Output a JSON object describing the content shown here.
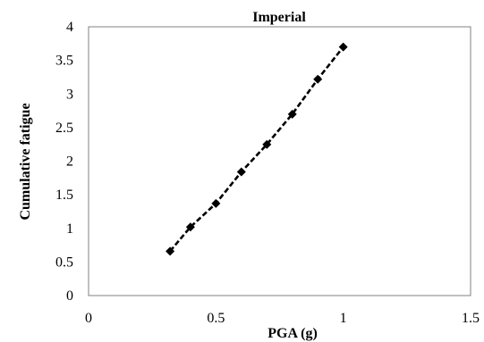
{
  "chart_data": {
    "type": "line",
    "title": "Imperial",
    "xlabel": "PGA (g)",
    "ylabel": "Cumulative fatigue",
    "xlim": [
      0,
      1.5
    ],
    "ylim": [
      0,
      4
    ],
    "x_ticks": [
      "0",
      "0.5",
      "1",
      "1.5"
    ],
    "y_ticks": [
      "0",
      "0.5",
      "1",
      "1.5",
      "2",
      "2.5",
      "3",
      "3.5",
      "4"
    ],
    "grid": false,
    "legend": "none",
    "series": [
      {
        "x": [
          0.32,
          0.4,
          0.5,
          0.6,
          0.7,
          0.8,
          0.9,
          1.0
        ],
        "y": [
          0.66,
          1.02,
          1.37,
          1.84,
          2.25,
          2.7,
          3.22,
          3.7
        ],
        "style": "dashed",
        "marker": "diamond",
        "color": "#000000"
      }
    ]
  }
}
